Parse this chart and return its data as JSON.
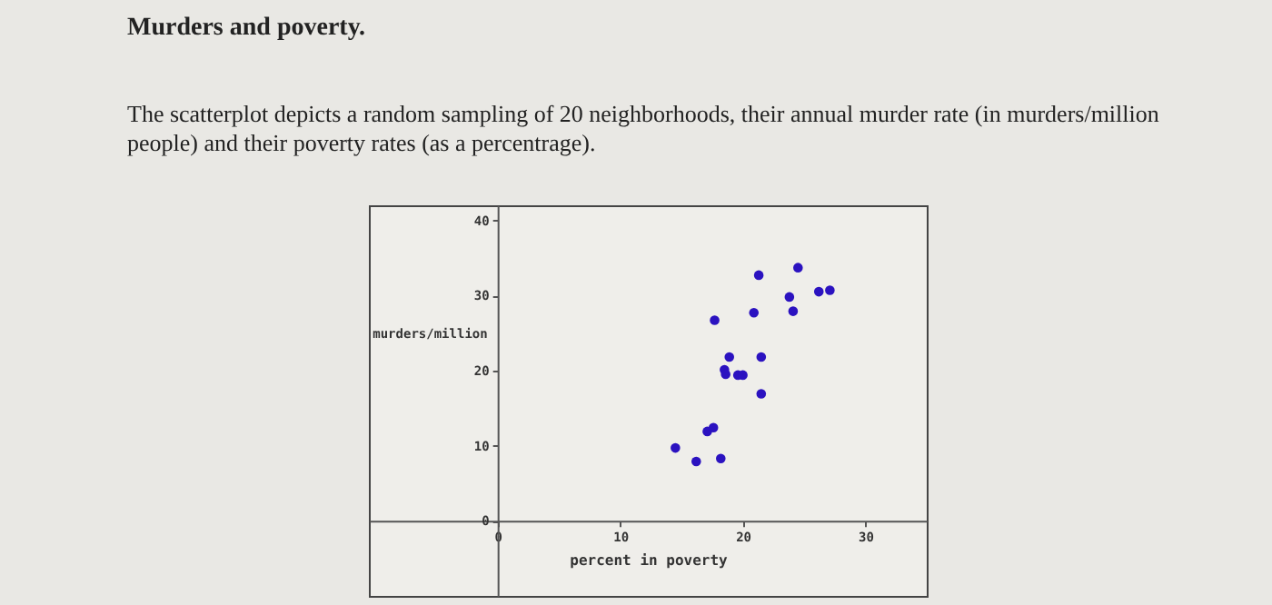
{
  "chart_data": {
    "type": "scatter",
    "title": "Murders and poverty.",
    "subtitle": "The scatterplot depicts a random sampling of 20 neighborhoods, their annual murder rate (in murders/million people) and their poverty rates (as a percentrage).",
    "xlabel": "percent in poverty",
    "ylabel": "murders/million",
    "x": [
      14.5,
      16.2,
      18.2,
      17.1,
      17.6,
      18.5,
      18.6,
      18.9,
      19.6,
      20.0,
      21.5,
      21.5,
      17.7,
      20.9,
      21.3,
      23.8,
      24.1,
      24.5,
      26.2,
      27.1
    ],
    "values": [
      9.7,
      7.9,
      8.3,
      11.9,
      12.4,
      20.1,
      19.5,
      21.8,
      19.4,
      19.4,
      16.9,
      21.8,
      26.7,
      27.7,
      32.7,
      29.8,
      27.9,
      33.7,
      30.5,
      30.7
    ],
    "color": "#2b12c0",
    "marker": "circle",
    "xlim": [
      -10.5,
      35
    ],
    "ylim": [
      -10,
      42
    ],
    "xticks": [
      0,
      10,
      20,
      30
    ],
    "yticks": [
      0,
      10,
      20,
      30,
      40
    ]
  }
}
